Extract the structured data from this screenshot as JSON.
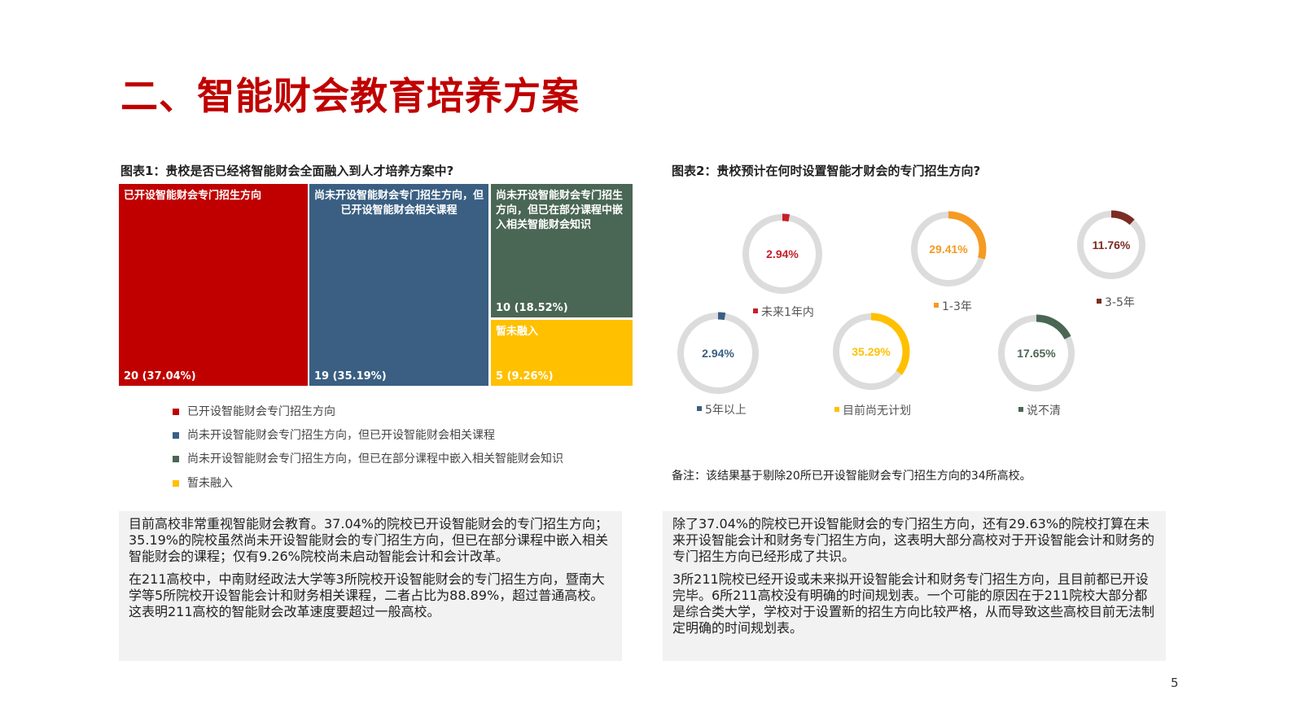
{
  "title": "二、智能财会教育培养方案",
  "chart1_title": "图表1：贵校是否已经将智能财会全面融入到人才培养方案中?",
  "chart2_title": "图表2：贵校预计在何时设置智能才财会的专门招生方向?",
  "note": "备注：该结果基于剔除20所已开设智能财会专门招生方向的34所高校。",
  "page_number": "5",
  "chart_data": [
    {
      "type": "treemap",
      "items": [
        {
          "name": "已开设智能财会专门招生方向",
          "tile_label": "已开设智能财会专门招生方向",
          "value": 20,
          "percent": "37.04%",
          "value_label": "20 (37.04%)",
          "color": "#c00000"
        },
        {
          "name": "尚未开设智能财会专门招生方向，但已开设智能财会相关课程",
          "tile_label": "尚未开设智能财会专门招生方向，但已开设智能财会相关课程",
          "value": 19,
          "percent": "35.19%",
          "value_label": "19 (35.19%)",
          "color": "#3a5f82"
        },
        {
          "name": "尚未开设智能财会专门招生方向，但已在部分课程中嵌入相关智能财会知识",
          "tile_label": "尚未开设智能财会专门招生方向，但已在部分课程中嵌入相关智能财会知识",
          "value": 10,
          "percent": "18.52%",
          "value_label": "10 (18.52%)",
          "color": "#4a6654"
        },
        {
          "name": "暂未融入",
          "tile_label": "暂未融入",
          "value": 5,
          "percent": "9.26%",
          "value_label": "5 (9.26%)",
          "color": "#ffc000"
        }
      ],
      "legend": "bottom"
    },
    {
      "type": "donut",
      "track_color": "#dcdcdc",
      "items": [
        {
          "name": "未来1年内",
          "value": 2.94,
          "label": "2.94%",
          "color": "#c8202a"
        },
        {
          "name": "1-3年",
          "value": 29.41,
          "label": "29.41%",
          "color": "#f59a23"
        },
        {
          "name": "3-5年",
          "value": 11.76,
          "label": "11.76%",
          "color": "#7b2c22"
        },
        {
          "name": "5年以上",
          "value": 2.94,
          "label": "2.94%",
          "color": "#3a5f82"
        },
        {
          "name": "目前尚无计划",
          "value": 35.29,
          "label": "35.29%",
          "color": "#ffc000"
        },
        {
          "name": "说不清",
          "value": 17.65,
          "label": "17.65%",
          "color": "#4a6654"
        }
      ]
    }
  ],
  "left_text": [
    "目前高校非常重视智能财会教育。37.04%的院校已开设智能财会的专门招生方向；35.19%的院校虽然尚未开设智能财会的专门招生方向，但已在部分课程中嵌入相关智能财会的课程；仅有9.26%院校尚未启动智能会计和会计改革。",
    "在211高校中，中南财经政法大学等3所院校开设智能财会的专门招生方向，暨南大学等5所院校开设智能会计和财务相关课程，二者占比为88.89%，超过普通高校。这表明211高校的智能财会改革速度要超过一般高校。"
  ],
  "right_text": [
    "除了37.04%的院校已开设智能财会的专门招生方向，还有29.63%的院校打算在未来开设智能会计和财务专门招生方向，这表明大部分高校对于开设智能会计和财务的专门招生方向已经形成了共识。",
    "3所211院校已经开设或未来拟开设智能会计和财务专门招生方向，且目前都已开设完毕。6所211高校没有明确的时间规划表。一个可能的原因在于211院校大部分都是综合类大学，学校对于设置新的招生方向比较严格，从而导致这些高校目前无法制定明确的时间规划表。"
  ]
}
